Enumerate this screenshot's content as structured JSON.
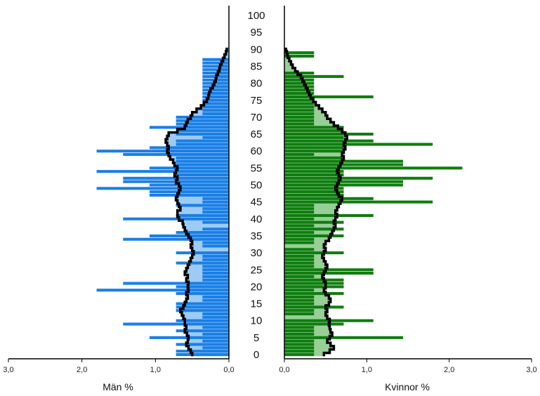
{
  "chart_data": {
    "type": "bar",
    "subtype": "population-pyramid",
    "age_axis": {
      "ticks": [
        "0",
        "5",
        "10",
        "15",
        "20",
        "25",
        "30",
        "35",
        "40",
        "45",
        "50",
        "55",
        "60",
        "65",
        "70",
        "75",
        "80",
        "85",
        "90",
        "95",
        "100"
      ],
      "range": [
        0,
        100
      ]
    },
    "colors": {
      "men_bar": "#1a7fe6",
      "men_fill": "#9ccbf5",
      "women_bar": "#0f7d0f",
      "women_fill": "#97cf97",
      "reference_line": "#000000"
    },
    "panels": [
      {
        "id": "men",
        "xlabel": "Män %",
        "direction": "left",
        "xlim": [
          0,
          3.0
        ],
        "xticks": [
          "3,0",
          "2,0",
          "1,0",
          "0,0"
        ],
        "xtick_values": [
          3.0,
          2.0,
          1.0,
          0.0
        ],
        "series": [
          {
            "name": "",
            "kind": "bars",
            "ages": [
              0,
              1,
              2,
              3,
              4,
              5,
              6,
              7,
              8,
              9,
              10,
              11,
              12,
              13,
              14,
              15,
              16,
              17,
              18,
              19,
              20,
              21,
              22,
              23,
              24,
              25,
              26,
              27,
              28,
              29,
              30,
              31,
              32,
              33,
              34,
              35,
              36,
              37,
              38,
              39,
              40,
              41,
              42,
              43,
              44,
              45,
              46,
              47,
              48,
              49,
              50,
              51,
              52,
              53,
              54,
              55,
              56,
              57,
              58,
              59,
              60,
              61,
              62,
              63,
              64,
              65,
              66,
              67,
              68,
              69,
              70,
              71,
              72,
              73,
              74,
              75,
              76,
              77,
              78,
              79,
              80,
              81,
              82,
              83,
              84,
              85,
              86,
              87,
              88,
              89,
              90
            ],
            "values": [
              0.72,
              0.72,
              0.36,
              0.72,
              0.36,
              1.08,
              0.36,
              0.72,
              0.36,
              1.44,
              0.72,
              0.36,
              0.36,
              0.72,
              0.72,
              0.72,
              0.36,
              0.36,
              0.72,
              1.8,
              0.72,
              1.44,
              0.36,
              0.36,
              0.36,
              0.36,
              0.36,
              0.72,
              0.36,
              0.36,
              0.72,
              0,
              0.36,
              0.36,
              1.44,
              1.08,
              0.72,
              0.36,
              0,
              0.36,
              1.44,
              0.72,
              0.36,
              0.36,
              0.72,
              0.36,
              0.36,
              1.08,
              1.08,
              1.8,
              1.08,
              1.44,
              1.44,
              0.72,
              1.8,
              1.08,
              0.72,
              0.72,
              0.72,
              1.44,
              1.8,
              1.08,
              0.72,
              0.72,
              0.36,
              0.72,
              0.72,
              1.08,
              0.72,
              0.72,
              0.72,
              0.36,
              0.36,
              0.36,
              0.36,
              0.36,
              0.36,
              0.36,
              0.36,
              0.36,
              0.36,
              0.36,
              0.36,
              0.36,
              0.36,
              0.36,
              0.36,
              0.36,
              0,
              0,
              0
            ]
          },
          {
            "name": "",
            "kind": "reference-step",
            "ages": [
              0,
              1,
              2,
              3,
              4,
              5,
              6,
              7,
              8,
              9,
              10,
              11,
              12,
              13,
              14,
              15,
              16,
              17,
              18,
              19,
              20,
              21,
              22,
              23,
              24,
              25,
              26,
              27,
              28,
              29,
              30,
              31,
              32,
              33,
              34,
              35,
              36,
              37,
              38,
              39,
              40,
              41,
              42,
              43,
              44,
              45,
              46,
              47,
              48,
              49,
              50,
              51,
              52,
              53,
              54,
              55,
              56,
              57,
              58,
              59,
              60,
              61,
              62,
              63,
              64,
              65,
              66,
              67,
              68,
              69,
              70,
              71,
              72,
              73,
              74,
              75,
              76,
              77,
              78,
              79,
              80,
              81,
              82,
              83,
              84,
              85,
              86,
              87,
              88,
              89,
              90
            ],
            "values": [
              0.5,
              0.52,
              0.55,
              0.58,
              0.56,
              0.55,
              0.57,
              0.6,
              0.58,
              0.6,
              0.6,
              0.62,
              0.64,
              0.66,
              0.62,
              0.6,
              0.58,
              0.56,
              0.58,
              0.55,
              0.56,
              0.55,
              0.58,
              0.56,
              0.6,
              0.58,
              0.56,
              0.54,
              0.52,
              0.5,
              0.48,
              0.5,
              0.52,
              0.5,
              0.52,
              0.55,
              0.58,
              0.6,
              0.62,
              0.63,
              0.68,
              0.7,
              0.7,
              0.66,
              0.68,
              0.7,
              0.72,
              0.7,
              0.68,
              0.66,
              0.68,
              0.72,
              0.7,
              0.74,
              0.72,
              0.7,
              0.74,
              0.76,
              0.8,
              0.82,
              0.84,
              0.82,
              0.84,
              0.86,
              0.84,
              0.82,
              0.7,
              0.6,
              0.58,
              0.56,
              0.52,
              0.5,
              0.44,
              0.38,
              0.34,
              0.3,
              0.28,
              0.27,
              0.25,
              0.22,
              0.2,
              0.18,
              0.17,
              0.15,
              0.13,
              0.12,
              0.1,
              0.08,
              0.06,
              0.04,
              0.03
            ]
          }
        ]
      },
      {
        "id": "women",
        "xlabel": "Kvinnor %",
        "direction": "right",
        "xlim": [
          0,
          3.0
        ],
        "xticks": [
          "0,0",
          "1,0",
          "2,0",
          "3,0"
        ],
        "xtick_values": [
          0.0,
          1.0,
          2.0,
          3.0
        ],
        "series": [
          {
            "name": "",
            "kind": "bars",
            "ages": [
              0,
              1,
              2,
              3,
              4,
              5,
              6,
              7,
              8,
              9,
              10,
              11,
              12,
              13,
              14,
              15,
              16,
              17,
              18,
              19,
              20,
              21,
              22,
              23,
              24,
              25,
              26,
              27,
              28,
              29,
              30,
              31,
              32,
              33,
              34,
              35,
              36,
              37,
              38,
              39,
              40,
              41,
              42,
              43,
              44,
              45,
              46,
              47,
              48,
              49,
              50,
              51,
              52,
              53,
              54,
              55,
              56,
              57,
              58,
              59,
              60,
              61,
              62,
              63,
              64,
              65,
              66,
              67,
              68,
              69,
              70,
              71,
              72,
              73,
              74,
              75,
              76,
              77,
              78,
              79,
              80,
              81,
              82,
              83,
              84,
              85,
              86,
              87,
              88,
              89,
              90
            ],
            "values": [
              0.36,
              0.36,
              0.36,
              0.36,
              0.36,
              1.44,
              0.36,
              0.36,
              0.36,
              0.72,
              1.08,
              0,
              0.36,
              0.36,
              0.72,
              0.36,
              0.36,
              0.36,
              0.72,
              0.36,
              0.72,
              0.72,
              0.72,
              0.36,
              1.08,
              1.08,
              0.36,
              0.36,
              0.36,
              0.36,
              0.72,
              0.36,
              0,
              0.36,
              0.36,
              0.72,
              0.36,
              0.72,
              0.36,
              0.72,
              0.36,
              1.08,
              0.36,
              0.36,
              0.36,
              1.8,
              1.08,
              0.72,
              0.72,
              0.72,
              1.44,
              1.44,
              1.8,
              0.72,
              0.72,
              2.16,
              1.44,
              1.44,
              0.72,
              0.36,
              0.72,
              0.72,
              1.8,
              1.08,
              0.72,
              1.08,
              0.72,
              0.72,
              0.36,
              0.36,
              0.36,
              0.36,
              0.36,
              0.36,
              0.36,
              0.36,
              1.08,
              0.36,
              0.36,
              0.36,
              0.36,
              0.36,
              0.72,
              0.36,
              0,
              0,
              0,
              0,
              0.36,
              0.36,
              0
            ]
          },
          {
            "name": "",
            "kind": "reference-step",
            "ages": [
              0,
              1,
              2,
              3,
              4,
              5,
              6,
              7,
              8,
              9,
              10,
              11,
              12,
              13,
              14,
              15,
              16,
              17,
              18,
              19,
              20,
              21,
              22,
              23,
              24,
              25,
              26,
              27,
              28,
              29,
              30,
              31,
              32,
              33,
              34,
              35,
              36,
              37,
              38,
              39,
              40,
              41,
              42,
              43,
              44,
              45,
              46,
              47,
              48,
              49,
              50,
              51,
              52,
              53,
              54,
              55,
              56,
              57,
              58,
              59,
              60,
              61,
              62,
              63,
              64,
              65,
              66,
              67,
              68,
              69,
              70,
              71,
              72,
              73,
              74,
              75,
              76,
              77,
              78,
              79,
              80,
              81,
              82,
              83,
              84,
              85,
              86,
              87,
              88,
              89,
              90
            ],
            "values": [
              0.48,
              0.55,
              0.6,
              0.56,
              0.52,
              0.55,
              0.58,
              0.56,
              0.55,
              0.54,
              0.55,
              0.52,
              0.5,
              0.52,
              0.5,
              0.54,
              0.56,
              0.54,
              0.5,
              0.48,
              0.5,
              0.5,
              0.48,
              0.46,
              0.48,
              0.5,
              0.52,
              0.5,
              0.48,
              0.46,
              0.48,
              0.5,
              0.48,
              0.5,
              0.54,
              0.56,
              0.58,
              0.6,
              0.62,
              0.6,
              0.62,
              0.64,
              0.62,
              0.64,
              0.66,
              0.68,
              0.7,
              0.66,
              0.64,
              0.62,
              0.64,
              0.66,
              0.68,
              0.66,
              0.64,
              0.66,
              0.68,
              0.7,
              0.72,
              0.7,
              0.72,
              0.74,
              0.72,
              0.74,
              0.76,
              0.74,
              0.7,
              0.65,
              0.6,
              0.56,
              0.52,
              0.5,
              0.46,
              0.42,
              0.38,
              0.35,
              0.32,
              0.3,
              0.28,
              0.26,
              0.24,
              0.22,
              0.2,
              0.16,
              0.13,
              0.1,
              0.08,
              0.06,
              0.04,
              0.03,
              0.02
            ]
          }
        ]
      }
    ]
  }
}
